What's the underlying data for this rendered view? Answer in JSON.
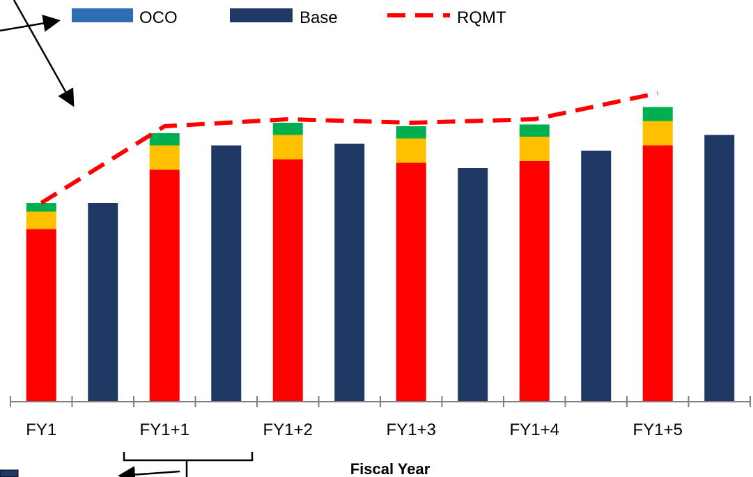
{
  "chart_data": {
    "type": "bar",
    "stacked": true,
    "title": "",
    "xlabel": "Fiscal Year",
    "ylabel": "",
    "ylim": [
      0,
      100
    ],
    "categories": [
      "FY1",
      "FY1+1",
      "FY1+2",
      "FY1+3",
      "FY1+4",
      "FY1+5"
    ],
    "colors": {
      "red": "#ff0000",
      "yellow": "#ffc000",
      "green": "#00b050",
      "base": "#1f3864",
      "oco": "#2e6db4",
      "rqmt": "#ff0000",
      "axis": "#808080"
    },
    "stacked_bars": {
      "red": [
        49.5,
        66.5,
        69.5,
        68.5,
        69.0,
        73.5
      ],
      "yellow": [
        5.0,
        7.0,
        7.0,
        7.0,
        7.0,
        7.0
      ],
      "green": [
        2.5,
        3.5,
        3.5,
        3.5,
        3.5,
        4.0
      ]
    },
    "series": [
      {
        "name": "OCO",
        "values": [
          0,
          0,
          0,
          0,
          0,
          0
        ]
      },
      {
        "name": "Base",
        "values": [
          57.0,
          73.5,
          74.0,
          67.0,
          72.0,
          76.5
        ]
      },
      {
        "name": "RQMT",
        "type": "line",
        "values": [
          57.0,
          79.0,
          81.0,
          80.0,
          81.0,
          88.5
        ]
      }
    ],
    "legend": {
      "position": "top",
      "items": [
        {
          "label": "OCO",
          "symbol": "box",
          "color": "#2e6db4"
        },
        {
          "label": "Base",
          "symbol": "box",
          "color": "#1f3864"
        },
        {
          "label": "RQMT",
          "symbol": "dashed-line",
          "color": "#ff0000"
        }
      ]
    },
    "annotations": [
      "arrow-pointing-left-up",
      "arrow-pointing-to-rqmt-line",
      "bracket-under-fy1+1",
      "arrow-pointing-down-left"
    ]
  }
}
